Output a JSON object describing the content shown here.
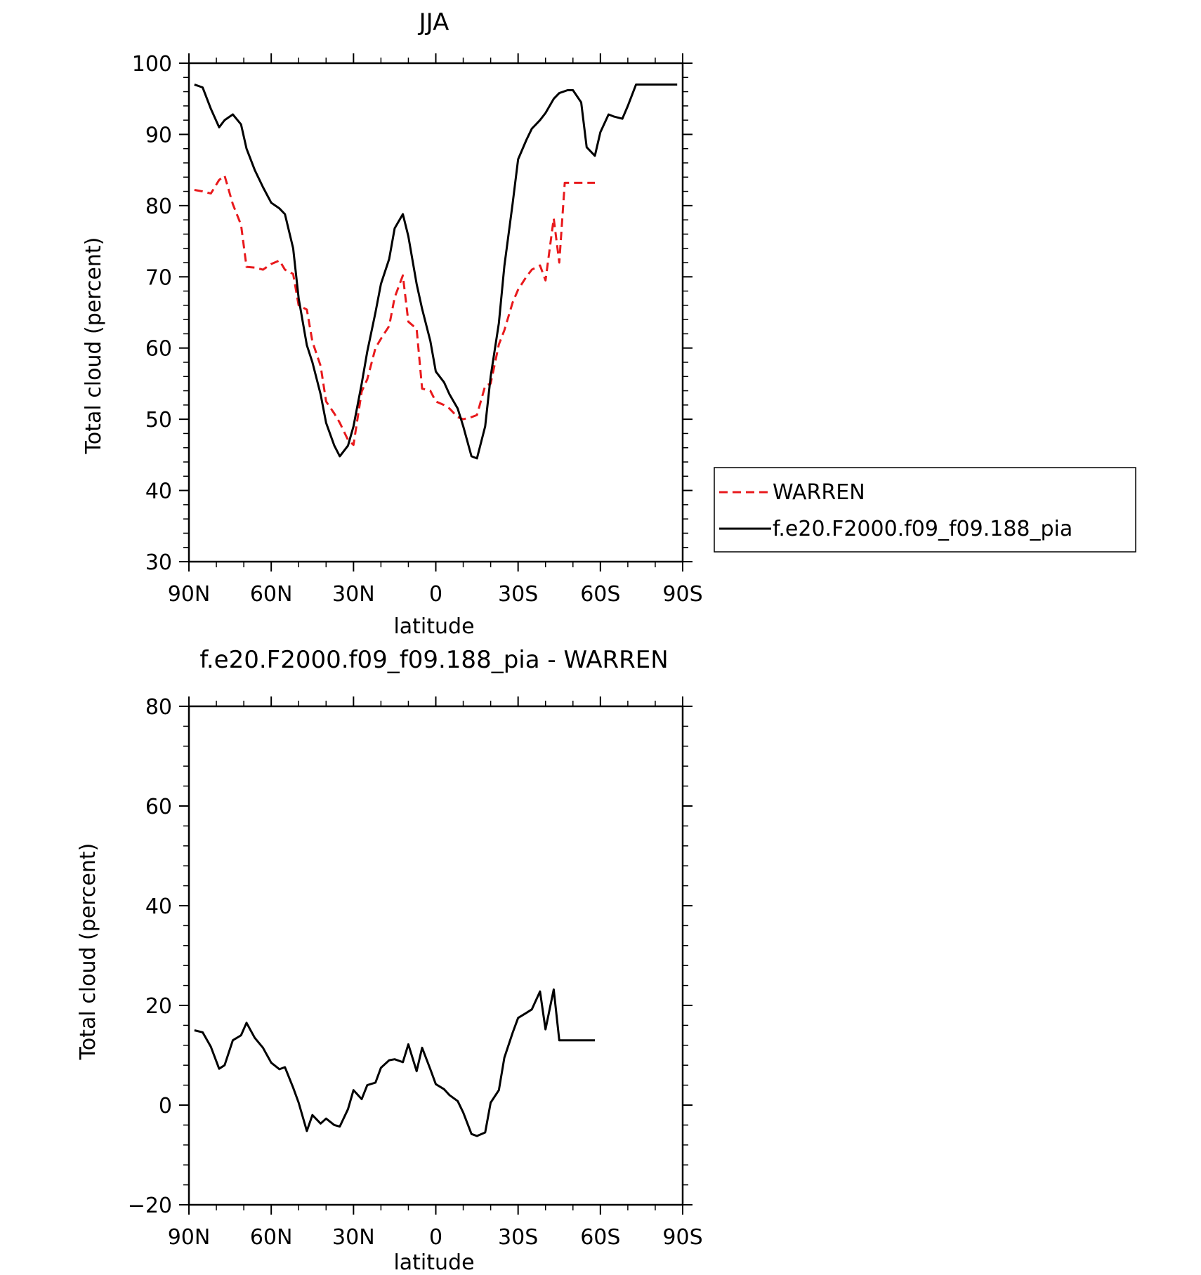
{
  "chart_data": [
    {
      "type": "line",
      "title": "JJA",
      "xlabel": "latitude",
      "ylabel": "Total cloud (percent)",
      "xlim": [
        -90,
        90
      ],
      "ylim": [
        30,
        100
      ],
      "x_ticks": [
        {
          "value": -90,
          "label": "90N"
        },
        {
          "value": -60,
          "label": "60N"
        },
        {
          "value": -30,
          "label": "30N"
        },
        {
          "value": 0,
          "label": "0"
        },
        {
          "value": 30,
          "label": "30S"
        },
        {
          "value": 60,
          "label": "60S"
        },
        {
          "value": 90,
          "label": "90S"
        }
      ],
      "y_ticks": [
        30,
        40,
        50,
        60,
        70,
        80,
        90,
        100
      ],
      "legend": "right",
      "series": [
        {
          "name": "WARREN",
          "color": "#e8191c",
          "dash": "dashed",
          "x": [
            -88,
            -85,
            -82,
            -79,
            -77,
            -74,
            -71,
            -69,
            -66,
            -63,
            -60,
            -57,
            -55,
            -52,
            -50,
            -47,
            -45,
            -42,
            -40,
            -37,
            -35,
            -32,
            -30,
            -27,
            -25,
            -22,
            -20,
            -17,
            -15,
            -12,
            -10,
            -7,
            -5,
            -2,
            0,
            3,
            5,
            8,
            10,
            13,
            15,
            18,
            20,
            23,
            25,
            28,
            30,
            33,
            35,
            38,
            40,
            43,
            45,
            47,
            48,
            50,
            52,
            55,
            57,
            58
          ],
          "y": [
            82.2,
            82.0,
            81.7,
            83.6,
            84.2,
            80.2,
            77.3,
            71.4,
            71.3,
            71.0,
            71.8,
            72.3,
            71.0,
            70.4,
            66.0,
            65.4,
            60.9,
            57.5,
            52.5,
            50.8,
            49.5,
            47.1,
            46.4,
            53.9,
            55.6,
            60.0,
            61.3,
            63.1,
            67.1,
            70.2,
            63.7,
            62.7,
            54.3,
            54.0,
            52.5,
            52.0,
            51.5,
            50.3,
            50.0,
            50.3,
            50.6,
            54.7,
            55.0,
            60.5,
            62.5,
            66.4,
            68.2,
            70.0,
            71.0,
            71.6,
            69.5,
            78.2,
            72.0,
            83.2,
            83.2,
            83.2,
            83.2,
            83.2,
            83.2,
            83.2
          ]
        },
        {
          "name": "f.e20.F2000.f09_f09.188_pia",
          "color": "#000000",
          "dash": "solid",
          "x": [
            -88,
            -85,
            -82,
            -79,
            -77,
            -74,
            -71,
            -69,
            -66,
            -63,
            -60,
            -57,
            -55,
            -52,
            -50,
            -47,
            -45,
            -42,
            -40,
            -37,
            -35,
            -32,
            -30,
            -27,
            -25,
            -22,
            -20,
            -17,
            -15,
            -12,
            -10,
            -7,
            -5,
            -2,
            0,
            3,
            5,
            8,
            10,
            13,
            15,
            18,
            20,
            23,
            25,
            28,
            30,
            33,
            35,
            38,
            40,
            43,
            45,
            48,
            50,
            53,
            55,
            58,
            60,
            63,
            65,
            68,
            70,
            73,
            75,
            78,
            80,
            83,
            85,
            88
          ],
          "y": [
            97.0,
            96.6,
            93.6,
            91.0,
            92.0,
            92.8,
            91.4,
            88.0,
            85.0,
            82.6,
            80.4,
            79.6,
            78.8,
            74.0,
            67.0,
            60.4,
            58.0,
            53.5,
            49.5,
            46.3,
            44.8,
            46.3,
            49.0,
            55.0,
            59.5,
            65.0,
            69.0,
            72.5,
            76.8,
            78.8,
            75.7,
            69.0,
            65.5,
            61.0,
            56.7,
            55.2,
            53.5,
            51.5,
            49.0,
            44.8,
            44.5,
            49.0,
            56.0,
            63.5,
            71.5,
            80.3,
            86.5,
            89.2,
            90.8,
            92.0,
            93.0,
            95.0,
            95.8,
            96.2,
            96.2,
            94.5,
            88.2,
            87.0,
            90.3,
            92.8,
            92.5,
            92.2,
            94.0,
            97.0,
            97.0,
            97.0,
            97.0,
            97.0,
            97.0,
            97.0
          ]
        }
      ]
    },
    {
      "type": "line",
      "title": "f.e20.F2000.f09_f09.188_pia - WARREN",
      "xlabel": "latitude",
      "ylabel": "Total cloud (percent)",
      "xlim": [
        -90,
        90
      ],
      "ylim": [
        -20,
        80
      ],
      "x_ticks": [
        {
          "value": -90,
          "label": "90N"
        },
        {
          "value": -60,
          "label": "60N"
        },
        {
          "value": -30,
          "label": "30N"
        },
        {
          "value": 0,
          "label": "0"
        },
        {
          "value": 30,
          "label": "30S"
        },
        {
          "value": 60,
          "label": "60S"
        },
        {
          "value": 90,
          "label": "90S"
        }
      ],
      "y_ticks": [
        -20,
        0,
        20,
        40,
        60,
        80
      ],
      "series": [
        {
          "color": "#000000",
          "dash": "solid",
          "x": [
            -88,
            -85,
            -82,
            -79,
            -77,
            -74,
            -71,
            -69,
            -66,
            -63,
            -60,
            -57,
            -55,
            -52,
            -50,
            -47,
            -45,
            -42,
            -40,
            -37,
            -35,
            -32,
            -30,
            -27,
            -25,
            -22,
            -20,
            -17,
            -15,
            -12,
            -10,
            -7,
            -5,
            -2,
            0,
            3,
            5,
            8,
            10,
            13,
            15,
            18,
            20,
            23,
            25,
            28,
            30,
            33,
            35,
            38,
            40,
            43,
            45,
            48,
            50,
            52,
            55,
            57,
            58
          ],
          "y": [
            15.0,
            14.6,
            11.7,
            7.3,
            8.0,
            13.0,
            14.0,
            16.5,
            13.5,
            11.5,
            8.5,
            7.2,
            7.6,
            3.5,
            0.5,
            -5.2,
            -2.0,
            -3.7,
            -2.7,
            -4.0,
            -4.3,
            -0.8,
            3.0,
            1.2,
            4.0,
            4.5,
            7.5,
            9.0,
            9.2,
            8.6,
            12.2,
            6.8,
            11.5,
            7.2,
            4.2,
            3.2,
            2.0,
            0.8,
            -1.5,
            -5.8,
            -6.2,
            -5.5,
            0.5,
            3.0,
            9.5,
            14.5,
            17.5,
            18.5,
            19.2,
            22.8,
            15.2,
            23.2,
            13.0,
            13.0,
            13.0,
            13.0,
            13.0,
            13.0,
            13.0
          ]
        }
      ]
    }
  ]
}
